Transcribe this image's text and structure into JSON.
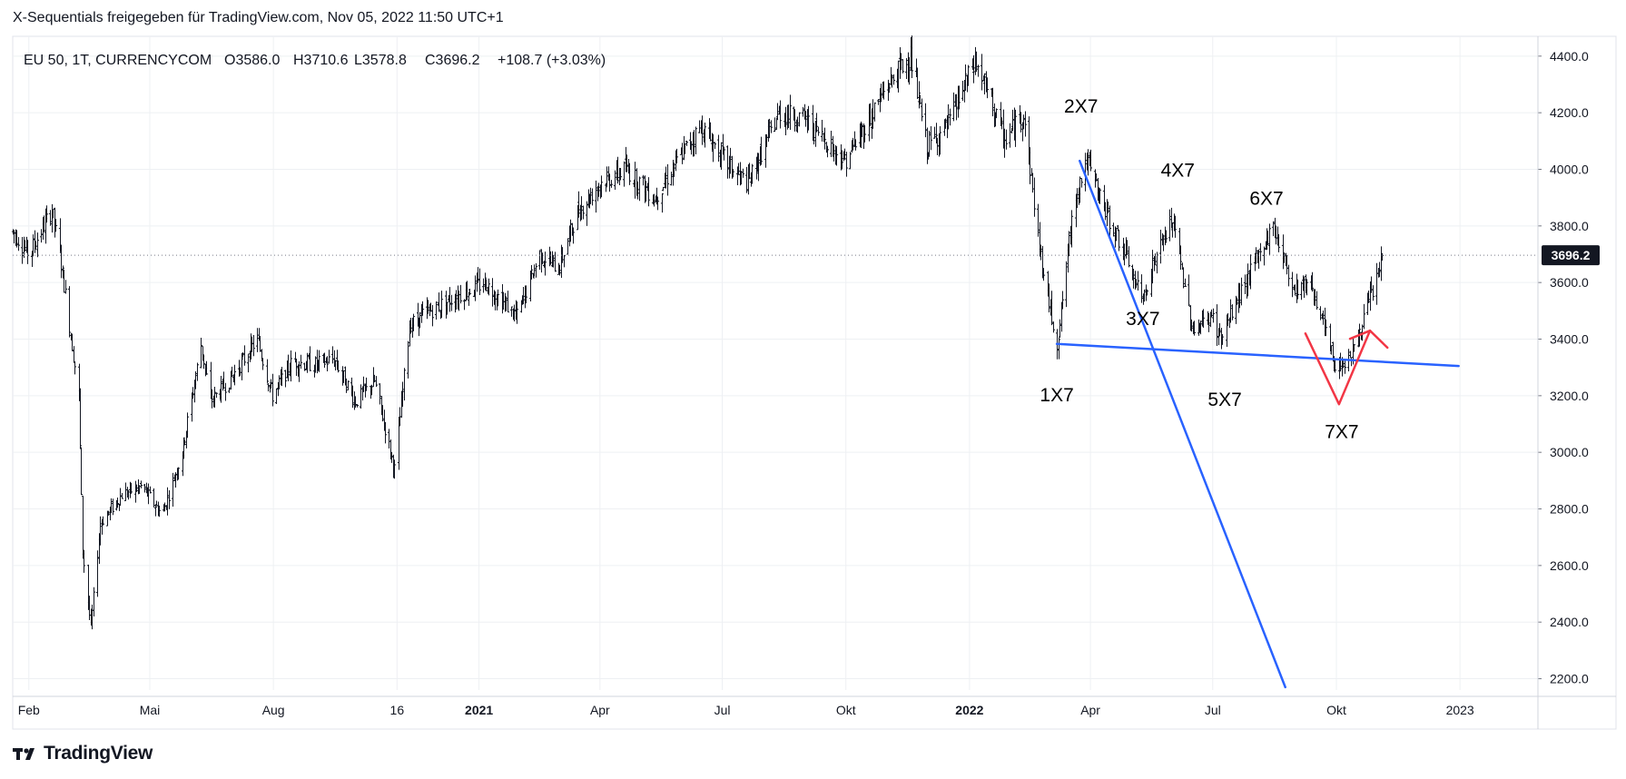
{
  "header": {
    "text": "X-Sequentials freigegeben für TradingView.com, Nov 05, 2022 11:50 UTC+1"
  },
  "footer": {
    "brand": "TradingView",
    "logo_icon": "tradingview-logo-icon"
  },
  "chart_data": {
    "type": "bar",
    "symbol_line": "EU 50, 1T, CURRENCYCOM",
    "ohlc": {
      "open": "O3586.0",
      "high": "H3710.6",
      "low": "L3578.8",
      "close": "C3696.2",
      "change": "+108.7 (+3.03%)"
    },
    "last_price_label": "3696.2",
    "ylim": [
      2160,
      4470
    ],
    "y_ticks": [
      {
        "value": 4400,
        "label": "4400.0"
      },
      {
        "value": 4200,
        "label": "4200.0"
      },
      {
        "value": 4000,
        "label": "4000.0"
      },
      {
        "value": 3800,
        "label": "3800.0"
      },
      {
        "value": 3600,
        "label": "3600.0"
      },
      {
        "value": 3400,
        "label": "3400.0"
      },
      {
        "value": 3200,
        "label": "3200.0"
      },
      {
        "value": 3000,
        "label": "3000.0"
      },
      {
        "value": 2800,
        "label": "2800.0"
      },
      {
        "value": 2600,
        "label": "2600.0"
      },
      {
        "value": 2400,
        "label": "2400.0"
      },
      {
        "value": 2200,
        "label": "2200.0"
      }
    ],
    "x_range": [
      "2020-01-20",
      "2023-02-28"
    ],
    "x_ticks": [
      {
        "date": "2020-02-01",
        "label": "Feb",
        "bold": false
      },
      {
        "date": "2020-05-01",
        "label": "Mai",
        "bold": false
      },
      {
        "date": "2020-08-01",
        "label": "Aug",
        "bold": false
      },
      {
        "date": "2020-11-01",
        "label": "16",
        "bold": false
      },
      {
        "date": "2021-01-01",
        "label": "2021",
        "bold": true
      },
      {
        "date": "2021-04-01",
        "label": "Apr",
        "bold": false
      },
      {
        "date": "2021-07-01",
        "label": "Jul",
        "bold": false
      },
      {
        "date": "2021-10-01",
        "label": "Okt",
        "bold": false
      },
      {
        "date": "2022-01-01",
        "label": "2022",
        "bold": true
      },
      {
        "date": "2022-04-01",
        "label": "Apr",
        "bold": false
      },
      {
        "date": "2022-07-01",
        "label": "Jul",
        "bold": false
      },
      {
        "date": "2022-10-01",
        "label": "Okt",
        "bold": false
      },
      {
        "date": "2023-01-01",
        "label": "2023",
        "bold": false
      }
    ],
    "price_path": [
      [
        "2020-01-20",
        3780
      ],
      [
        "2020-02-01",
        3700
      ],
      [
        "2020-02-18",
        3855
      ],
      [
        "2020-02-24",
        3700
      ],
      [
        "2020-03-02",
        3450
      ],
      [
        "2020-03-09",
        3200
      ],
      [
        "2020-03-12",
        2650
      ],
      [
        "2020-03-18",
        2380
      ],
      [
        "2020-03-25",
        2750
      ],
      [
        "2020-04-10",
        2850
      ],
      [
        "2020-04-25",
        2880
      ],
      [
        "2020-05-10",
        2780
      ],
      [
        "2020-05-25",
        3000
      ],
      [
        "2020-06-08",
        3380
      ],
      [
        "2020-06-15",
        3180
      ],
      [
        "2020-06-30",
        3260
      ],
      [
        "2020-07-20",
        3400
      ],
      [
        "2020-07-31",
        3200
      ],
      [
        "2020-08-15",
        3320
      ],
      [
        "2020-09-01",
        3310
      ],
      [
        "2020-09-15",
        3330
      ],
      [
        "2020-10-01",
        3180
      ],
      [
        "2020-10-15",
        3250
      ],
      [
        "2020-10-30",
        2940
      ],
      [
        "2020-11-10",
        3450
      ],
      [
        "2020-11-25",
        3500
      ],
      [
        "2020-12-15",
        3550
      ],
      [
        "2021-01-05",
        3600
      ],
      [
        "2021-01-29",
        3480
      ],
      [
        "2021-02-15",
        3700
      ],
      [
        "2021-03-01",
        3650
      ],
      [
        "2021-03-15",
        3850
      ],
      [
        "2021-04-01",
        3950
      ],
      [
        "2021-04-20",
        4000
      ],
      [
        "2021-05-12",
        3900
      ],
      [
        "2021-05-31",
        4050
      ],
      [
        "2021-06-15",
        4150
      ],
      [
        "2021-07-08",
        4000
      ],
      [
        "2021-07-20",
        3950
      ],
      [
        "2021-08-12",
        4200
      ],
      [
        "2021-08-31",
        4180
      ],
      [
        "2021-09-20",
        4080
      ],
      [
        "2021-09-30",
        4030
      ],
      [
        "2021-10-15",
        4150
      ],
      [
        "2021-11-01",
        4300
      ],
      [
        "2021-11-18",
        4400
      ],
      [
        "2021-11-30",
        4080
      ],
      [
        "2021-12-15",
        4150
      ],
      [
        "2022-01-05",
        4380
      ],
      [
        "2022-01-20",
        4200
      ],
      [
        "2022-01-27",
        4100
      ],
      [
        "2022-02-10",
        4200
      ],
      [
        "2022-02-24",
        3650
      ],
      [
        "2022-03-07",
        3380
      ],
      [
        "2022-03-20",
        3900
      ],
      [
        "2022-03-29",
        4030
      ],
      [
        "2022-04-12",
        3850
      ],
      [
        "2022-04-25",
        3720
      ],
      [
        "2022-05-09",
        3540
      ],
      [
        "2022-05-20",
        3700
      ],
      [
        "2022-06-01",
        3820
      ],
      [
        "2022-06-16",
        3430
      ],
      [
        "2022-06-30",
        3480
      ],
      [
        "2022-07-07",
        3400
      ],
      [
        "2022-07-20",
        3550
      ],
      [
        "2022-08-15",
        3800
      ],
      [
        "2022-08-30",
        3580
      ],
      [
        "2022-09-12",
        3600
      ],
      [
        "2022-09-30",
        3300
      ],
      [
        "2022-10-13",
        3350
      ],
      [
        "2022-10-31",
        3620
      ],
      [
        "2022-11-04",
        3696
      ]
    ],
    "annotations": [
      {
        "text": "1X7",
        "date": "2022-03-07",
        "price": 3180
      },
      {
        "text": "2X7",
        "date": "2022-03-25",
        "price": 4200
      },
      {
        "text": "3X7",
        "date": "2022-05-10",
        "price": 3450
      },
      {
        "text": "4X7",
        "date": "2022-06-05",
        "price": 3975
      },
      {
        "text": "5X7",
        "date": "2022-07-10",
        "price": 3165
      },
      {
        "text": "6X7",
        "date": "2022-08-10",
        "price": 3875
      },
      {
        "text": "7X7",
        "date": "2022-10-05",
        "price": 3050
      }
    ],
    "trendlines": [
      {
        "name": "support-line",
        "color": "#2962ff",
        "from": [
          "2022-03-07",
          3383
        ],
        "to": [
          "2022-12-31",
          3305
        ]
      },
      {
        "name": "falling-line",
        "color": "#2962ff",
        "from": [
          "2022-03-24",
          4030
        ],
        "to": [
          "2022-08-24",
          2170
        ]
      }
    ],
    "v_pattern": {
      "color": "#f23645",
      "points": [
        [
          "2022-09-08",
          3420
        ],
        [
          "2022-10-03",
          3170
        ],
        [
          "2022-10-26",
          3430
        ]
      ],
      "arrow_tail": [
        "2022-11-08",
        3370
      ]
    },
    "colors": {
      "bars": "#131722",
      "grid": "#eef0f3",
      "last_price_bg": "#131722"
    }
  }
}
